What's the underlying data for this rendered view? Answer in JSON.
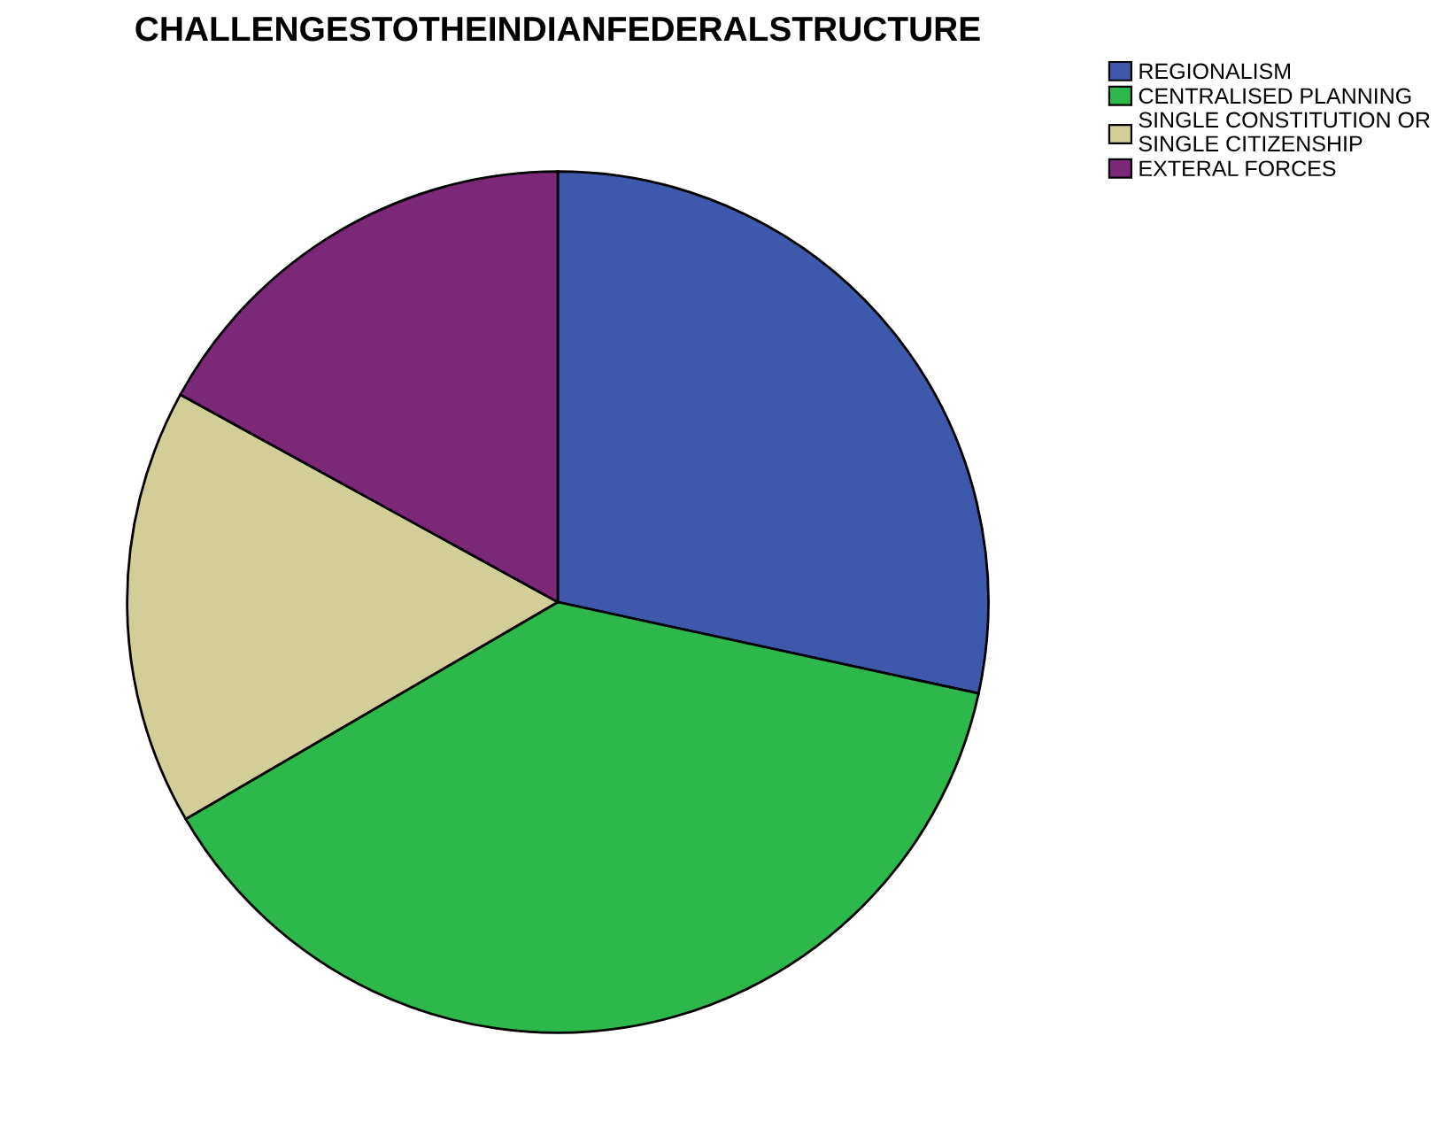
{
  "chart_data": {
    "type": "pie",
    "title": "CHALLENGESTOTHEINDIANFEDERALSTRUCTURE",
    "categories": [
      "REGIONALISM",
      "CENTRALISED PLANNING",
      "SINGLE CONSTITUTION OR\nSINGLE CITIZENSHIP",
      "EXTERAL FORCES"
    ],
    "values": [
      28.4,
      38.2,
      16.4,
      17.0
    ],
    "colors": [
      "#3e58ac",
      "#2db84b",
      "#d3ce97",
      "#7b2879"
    ],
    "legend": "top right"
  }
}
